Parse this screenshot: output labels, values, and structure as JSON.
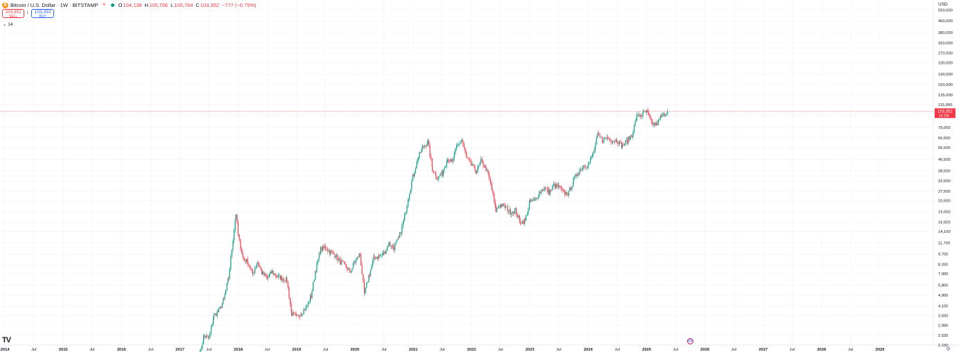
{
  "header": {
    "symbol": "Bitcoin / U.S. Dollar · 1W · BITSTAMP",
    "ohlc": [
      {
        "label": "O",
        "value": "104,138"
      },
      {
        "label": "H",
        "value": "105,706"
      },
      {
        "label": "L",
        "value": "100,764"
      },
      {
        "label": "C",
        "value": "103,352"
      }
    ],
    "change": "−777 (−0.75%)"
  },
  "trade": {
    "sell_price": "103,352",
    "sell_label": "SELL",
    "spread": "1",
    "buy_price": "103,353",
    "buy_label": "BUY"
  },
  "indicator_toggle": "14",
  "currency": "USD",
  "price_label": {
    "value": "103,352",
    "countdown": "1d 15h"
  },
  "colors": {
    "up": "#089981",
    "down": "#f23645",
    "grid": "#f0f3fa",
    "axis_text": "#131722"
  },
  "icons": {
    "logo": "tradingview-logo-icon",
    "flag": "us-flag-icon",
    "settings": "gear-icon"
  },
  "chart_data": {
    "type": "candlestick",
    "scale": "log",
    "interval": "1W",
    "currency": "USD",
    "ylim": [
      2150,
      650000
    ],
    "xlim": [
      "2013-12",
      "2029-12"
    ],
    "grid": true,
    "y_ticks": [
      2150,
      2530,
      2980,
      3500,
      4100,
      4900,
      5800,
      7000,
      8200,
      9700,
      11700,
      14100,
      16500,
      19500,
      23500,
      27500,
      32500,
      38500,
      46500,
      56500,
      66500,
      79000,
      95000,
      115000,
      135000,
      160000,
      190000,
      230000,
      270000,
      320000,
      380000,
      460000,
      550000
    ],
    "y_tick_labels": [
      "2,150",
      "2,530",
      "2,980",
      "3,500",
      "4,100",
      "4,900",
      "5,800",
      "7,000",
      "8,200",
      "9,700",
      "11,700",
      "14,100",
      "16,500",
      "19,500",
      "23,500",
      "27,500",
      "32,500",
      "38,500",
      "46,500",
      "56,500",
      "66,500",
      "79,000",
      "",
      "115,000",
      "135,000",
      "160,000",
      "190,000",
      "230,000",
      "270,000",
      "320,000",
      "380,000",
      "460,000",
      "550,000"
    ],
    "x_ticks": [
      {
        "date": "2014-01",
        "label": "2014",
        "bold": true
      },
      {
        "date": "2014-07",
        "label": "Jul",
        "bold": false
      },
      {
        "date": "2015-01",
        "label": "2015",
        "bold": true
      },
      {
        "date": "2015-07",
        "label": "Jul",
        "bold": false
      },
      {
        "date": "2016-01",
        "label": "2016",
        "bold": true
      },
      {
        "date": "2016-07",
        "label": "Jul",
        "bold": false
      },
      {
        "date": "2017-01",
        "label": "2017",
        "bold": true
      },
      {
        "date": "2017-07",
        "label": "Jul",
        "bold": false
      },
      {
        "date": "2018-01",
        "label": "2018",
        "bold": true
      },
      {
        "date": "2018-07",
        "label": "Jul",
        "bold": false
      },
      {
        "date": "2019-01",
        "label": "2019",
        "bold": true
      },
      {
        "date": "2019-07",
        "label": "Jul",
        "bold": false
      },
      {
        "date": "2020-01",
        "label": "2020",
        "bold": true
      },
      {
        "date": "2020-07",
        "label": "Jul",
        "bold": false
      },
      {
        "date": "2021-01",
        "label": "2021",
        "bold": true
      },
      {
        "date": "2021-07",
        "label": "Jul",
        "bold": false
      },
      {
        "date": "2022-01",
        "label": "2022",
        "bold": true
      },
      {
        "date": "2022-07",
        "label": "Jul",
        "bold": false
      },
      {
        "date": "2023-01",
        "label": "2023",
        "bold": true
      },
      {
        "date": "2023-07",
        "label": "Jul",
        "bold": false
      },
      {
        "date": "2024-01",
        "label": "2024",
        "bold": true
      },
      {
        "date": "2024-07",
        "label": "Jul",
        "bold": false
      },
      {
        "date": "2025-01",
        "label": "2025",
        "bold": true
      },
      {
        "date": "2025-07",
        "label": "Jul",
        "bold": false
      },
      {
        "date": "2026-01",
        "label": "2026",
        "bold": true
      },
      {
        "date": "2026-07",
        "label": "Jul",
        "bold": false
      },
      {
        "date": "2027-01",
        "label": "2027",
        "bold": true
      },
      {
        "date": "2027-07",
        "label": "Jul",
        "bold": false
      },
      {
        "date": "2028-01",
        "label": "2028",
        "bold": true
      },
      {
        "date": "2028-07",
        "label": "Jul",
        "bold": false
      },
      {
        "date": "2029-01",
        "label": "2029",
        "bold": true
      }
    ],
    "last_price": 103352,
    "close_path": [
      [
        "2017-05",
        1800
      ],
      [
        "2017-06",
        2500
      ],
      [
        "2017-07",
        2400
      ],
      [
        "2017-08",
        3500
      ],
      [
        "2017-09",
        3800
      ],
      [
        "2017-10",
        4500
      ],
      [
        "2017-11",
        6500
      ],
      [
        "2017-12-17",
        19000
      ],
      [
        "2018-01",
        13000
      ],
      [
        "2018-02",
        9000
      ],
      [
        "2018-03",
        8500
      ],
      [
        "2018-04",
        7000
      ],
      [
        "2018-05",
        8500
      ],
      [
        "2018-06",
        7000
      ],
      [
        "2018-07",
        6500
      ],
      [
        "2018-08",
        7200
      ],
      [
        "2018-09",
        6700
      ],
      [
        "2018-10",
        6500
      ],
      [
        "2018-11",
        6300
      ],
      [
        "2018-12",
        3600
      ],
      [
        "2019-01",
        3400
      ],
      [
        "2019-02",
        3700
      ],
      [
        "2019-03",
        4000
      ],
      [
        "2019-04",
        4800
      ],
      [
        "2019-05",
        7500
      ],
      [
        "2019-06",
        10500
      ],
      [
        "2019-07",
        10800
      ],
      [
        "2019-08",
        10000
      ],
      [
        "2019-09",
        9500
      ],
      [
        "2019-10",
        8500
      ],
      [
        "2019-11",
        8000
      ],
      [
        "2019-12",
        7200
      ],
      [
        "2020-01",
        8500
      ],
      [
        "2020-02",
        9700
      ],
      [
        "2020-03",
        5000
      ],
      [
        "2020-04",
        7000
      ],
      [
        "2020-05",
        9200
      ],
      [
        "2020-06",
        9300
      ],
      [
        "2020-07",
        9800
      ],
      [
        "2020-08",
        11500
      ],
      [
        "2020-09",
        10800
      ],
      [
        "2020-10",
        12500
      ],
      [
        "2020-11",
        16500
      ],
      [
        "2020-12",
        25000
      ],
      [
        "2021-01",
        36000
      ],
      [
        "2021-02",
        48000
      ],
      [
        "2021-03",
        57000
      ],
      [
        "2021-04",
        62000
      ],
      [
        "2021-05",
        40000
      ],
      [
        "2021-06",
        34000
      ],
      [
        "2021-07",
        37000
      ],
      [
        "2021-08",
        47000
      ],
      [
        "2021-09",
        44000
      ],
      [
        "2021-10",
        58000
      ],
      [
        "2021-11",
        64000
      ],
      [
        "2021-12",
        47000
      ],
      [
        "2022-01",
        42000
      ],
      [
        "2022-02",
        38000
      ],
      [
        "2022-03",
        45000
      ],
      [
        "2022-04",
        40000
      ],
      [
        "2022-05",
        31000
      ],
      [
        "2022-06",
        20000
      ],
      [
        "2022-07",
        22000
      ],
      [
        "2022-08",
        21000
      ],
      [
        "2022-09",
        19500
      ],
      [
        "2022-10",
        20000
      ],
      [
        "2022-11",
        16500
      ],
      [
        "2022-12",
        16800
      ],
      [
        "2023-01",
        23000
      ],
      [
        "2023-02",
        23500
      ],
      [
        "2023-03",
        27000
      ],
      [
        "2023-04",
        29000
      ],
      [
        "2023-05",
        27000
      ],
      [
        "2023-06",
        30000
      ],
      [
        "2023-07",
        29500
      ],
      [
        "2023-08",
        26500
      ],
      [
        "2023-09",
        26500
      ],
      [
        "2023-10",
        33000
      ],
      [
        "2023-11",
        37500
      ],
      [
        "2023-12",
        42000
      ],
      [
        "2024-01",
        42500
      ],
      [
        "2024-02",
        51000
      ],
      [
        "2024-03",
        69000
      ],
      [
        "2024-04",
        64000
      ],
      [
        "2024-05",
        67000
      ],
      [
        "2024-06",
        63000
      ],
      [
        "2024-07",
        64000
      ],
      [
        "2024-08",
        58000
      ],
      [
        "2024-09",
        63000
      ],
      [
        "2024-10",
        70000
      ],
      [
        "2024-11",
        95000
      ],
      [
        "2024-12",
        97000
      ],
      [
        "2025-01",
        102000
      ],
      [
        "2025-02",
        85000
      ],
      [
        "2025-03",
        82000
      ],
      [
        "2025-04",
        94000
      ],
      [
        "2025-05-12",
        103352
      ]
    ]
  }
}
